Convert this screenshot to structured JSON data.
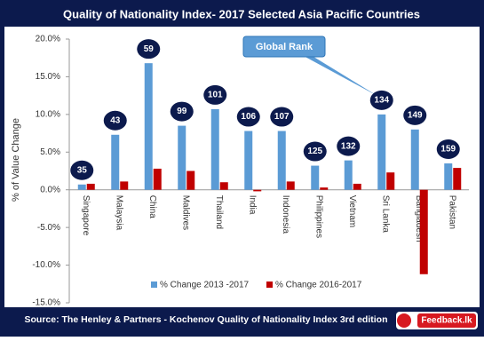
{
  "chart_data": {
    "type": "bar",
    "title": "Quality of Nationality Index- 2017 Selected Asia Pacific Countries",
    "y_label": "% of Value Change",
    "annotation": "Global Rank",
    "source": "Source: The Henley & Partners - Kochenov Quality of Nationality Index 3rd edition",
    "logo": "Feedback.lk",
    "categories": [
      "Singapore",
      "Malaysia",
      "China",
      "Maldives",
      "Thailand",
      "India",
      "Indonesia",
      "Philippines",
      "Vietnam",
      "Sri Lanka",
      "Bangladesh",
      "Pakistan"
    ],
    "rank_labels": [
      35,
      43,
      59,
      99,
      101,
      106,
      107,
      125,
      132,
      134,
      149,
      159
    ],
    "series": [
      {
        "name": "% Change 2013 -2017",
        "color": "#5b9bd5",
        "values": [
          0.7,
          7.3,
          16.8,
          8.5,
          10.7,
          7.8,
          7.8,
          3.2,
          3.9,
          10.0,
          8.0,
          3.5
        ]
      },
      {
        "name": "% Change 2016-2017",
        "color": "#c00000",
        "values": [
          0.8,
          1.1,
          2.8,
          2.5,
          1.0,
          -0.2,
          1.1,
          0.3,
          0.8,
          2.3,
          -11.2,
          2.9
        ]
      }
    ],
    "ylim": [
      -15,
      20
    ],
    "yticks": [
      {
        "value": -15,
        "label": "-15.0%"
      },
      {
        "value": -10,
        "label": "-10.0%"
      },
      {
        "value": -5,
        "label": "-5.0%"
      },
      {
        "value": 0,
        "label": "0.0%"
      },
      {
        "value": 5,
        "label": "5.0%"
      },
      {
        "value": 10,
        "label": "10.0%"
      },
      {
        "value": 15,
        "label": "15.0%"
      },
      {
        "value": 20,
        "label": "20.0%"
      }
    ],
    "grid": false
  }
}
